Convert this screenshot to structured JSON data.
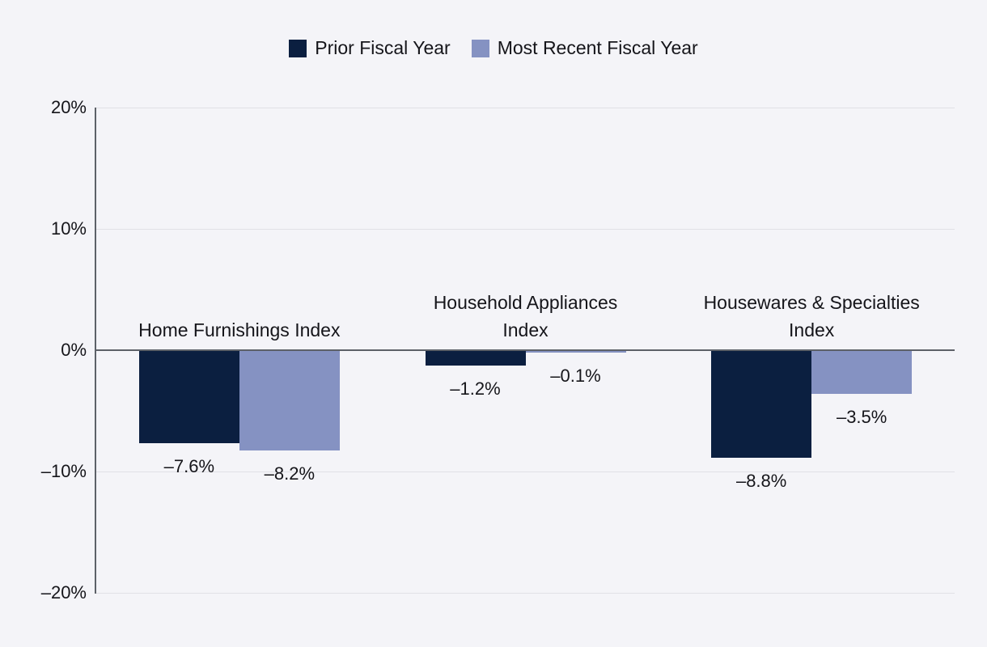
{
  "figure": {
    "background": "#f4f4f8",
    "text_color": "#15151a",
    "axis_color": "#5d6168",
    "gridline_color": "#e0e0e6"
  },
  "legend": {
    "items": [
      {
        "id": "prior",
        "label": "Prior Fiscal Year",
        "color": "#0b1f40"
      },
      {
        "id": "recent",
        "label": "Most Recent Fiscal Year",
        "color": "#8592c2"
      }
    ]
  },
  "chart_data": {
    "type": "bar",
    "orientation": "vertical",
    "title": "",
    "xlabel": "",
    "ylabel": "",
    "grid": true,
    "legend_position": "top",
    "y_axis": {
      "range": [
        -20,
        20
      ],
      "unit": "%",
      "ticks": [
        {
          "value": 20,
          "label": "20%"
        },
        {
          "value": 10,
          "label": "10%"
        },
        {
          "value": 0,
          "label": "0%"
        },
        {
          "value": -10,
          "label": "–10%"
        },
        {
          "value": -20,
          "label": "–20%"
        }
      ]
    },
    "categories": [
      "Home Furnishings Index",
      "Household Appliances Index",
      "Housewares & Specialties Index"
    ],
    "category_label_lines": [
      [
        "Home Furnishings Index"
      ],
      [
        "Household Appliances",
        "Index"
      ],
      [
        "Housewares & Specialties",
        "Index"
      ]
    ],
    "series": [
      {
        "name": "Prior Fiscal Year",
        "color": "#0b1f40",
        "values": [
          -7.6,
          -1.2,
          -8.8
        ],
        "labels": [
          "–7.6%",
          "–1.2%",
          "–8.8%"
        ]
      },
      {
        "name": "Most Recent Fiscal Year",
        "color": "#8592c2",
        "values": [
          -8.2,
          -0.1,
          -3.5
        ],
        "labels": [
          "–8.2%",
          "–0.1%",
          "–3.5%"
        ]
      }
    ]
  }
}
